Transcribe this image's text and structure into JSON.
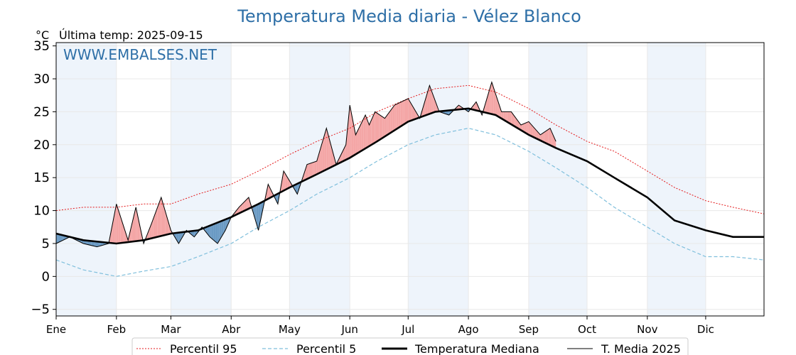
{
  "chart_data": {
    "type": "line",
    "title": "Temperatura Media diaria - Vélez Blanco",
    "unit_label": "°C",
    "last_temp_label": "Última temp: 2025-09-15",
    "watermark": "WWW.EMBALSES.NET",
    "ylim": [
      -6,
      35.5
    ],
    "y_ticks": [
      -5,
      0,
      5,
      10,
      15,
      20,
      25,
      30,
      35
    ],
    "y_tick_labels": [
      "−5",
      "0",
      "5",
      "10",
      "15",
      "20",
      "25",
      "30",
      "35"
    ],
    "x_range": [
      1,
      365
    ],
    "month_labels": [
      "Ene",
      "Feb",
      "Mar",
      "Abr",
      "May",
      "Jun",
      "Jul",
      "Ago",
      "Sep",
      "Oct",
      "Nov",
      "Dic"
    ],
    "month_start_days": [
      1,
      32,
      60,
      91,
      121,
      152,
      182,
      213,
      244,
      274,
      305,
      335
    ],
    "shaded_months": [
      "Ene",
      "Mar",
      "May",
      "Jul",
      "Sep",
      "Nov"
    ],
    "grid": true,
    "legend_position": "bottom",
    "colors": {
      "p95": "#e41a1c",
      "p5": "#7fbfdc",
      "median": "#000000",
      "current": "#000000",
      "above": "#f4a6a6",
      "below": "#6a9ac4",
      "shade": "#eef4fb"
    },
    "series": [
      {
        "name": "Percentil 95",
        "style": "dotted-red",
        "x": [
          1,
          15,
          32,
          46,
          60,
          74,
          91,
          105,
          121,
          135,
          152,
          166,
          182,
          196,
          213,
          227,
          244,
          258,
          274,
          288,
          305,
          319,
          335,
          349,
          365
        ],
        "values": [
          10,
          10.5,
          10.5,
          11,
          11,
          12.5,
          14,
          16,
          18.5,
          20.5,
          22.5,
          25,
          27,
          28.5,
          29,
          28,
          25.5,
          23,
          20.5,
          19,
          16,
          13.5,
          11.5,
          10.5,
          9.5
        ]
      },
      {
        "name": "Percentil 5",
        "style": "dashed-lightblue",
        "x": [
          1,
          15,
          32,
          46,
          60,
          74,
          91,
          105,
          121,
          135,
          152,
          166,
          182,
          196,
          213,
          227,
          244,
          258,
          274,
          288,
          305,
          319,
          335,
          349,
          365
        ],
        "values": [
          2.5,
          1,
          0,
          0.8,
          1.5,
          3,
          5,
          7.5,
          10,
          12.5,
          15,
          17.5,
          20,
          21.5,
          22.5,
          21.5,
          19,
          16.5,
          13.5,
          10.5,
          7.5,
          5,
          3,
          3,
          2.5
        ]
      },
      {
        "name": "Temperatura Mediana",
        "style": "thick-black",
        "x": [
          1,
          15,
          32,
          46,
          60,
          74,
          91,
          105,
          121,
          135,
          152,
          166,
          182,
          196,
          213,
          227,
          244,
          258,
          274,
          288,
          305,
          319,
          335,
          349,
          365
        ],
        "values": [
          6.5,
          5.5,
          5,
          5.5,
          6.5,
          7,
          9,
          11,
          13.5,
          15.5,
          18,
          20.5,
          23.5,
          25,
          25.5,
          24.5,
          21.5,
          19.5,
          17.5,
          15,
          12,
          8.5,
          7,
          6,
          6
        ]
      },
      {
        "name": "T. Media 2025",
        "style": "thin-black",
        "x": [
          1,
          8,
          15,
          22,
          28,
          32,
          38,
          42,
          46,
          50,
          55,
          60,
          64,
          68,
          72,
          76,
          80,
          84,
          88,
          91,
          95,
          100,
          105,
          110,
          115,
          118,
          121,
          125,
          130,
          135,
          140,
          145,
          150,
          152,
          155,
          160,
          162,
          165,
          170,
          175,
          182,
          188,
          193,
          198,
          203,
          208,
          213,
          217,
          220,
          225,
          230,
          235,
          240,
          244,
          250,
          255,
          258
        ],
        "values": [
          5,
          6,
          5,
          4.5,
          5,
          11,
          5.5,
          10.5,
          5,
          8,
          12,
          7,
          5,
          7,
          6,
          7.5,
          6,
          5,
          7,
          9,
          10.5,
          12,
          7,
          14,
          11,
          16,
          14.5,
          12.5,
          17,
          17.5,
          22.5,
          17,
          20,
          26,
          21.5,
          24.5,
          23,
          25,
          24,
          26,
          27,
          24,
          29,
          25,
          24.5,
          26,
          25,
          26.5,
          24.5,
          29.5,
          25,
          25,
          23,
          23.5,
          21.5,
          22.5,
          20.5
        ]
      }
    ]
  },
  "legend": {
    "p95": "Percentil 95",
    "p5": "Percentil 5",
    "median": "Temperatura Mediana",
    "current": "T. Media 2025"
  }
}
